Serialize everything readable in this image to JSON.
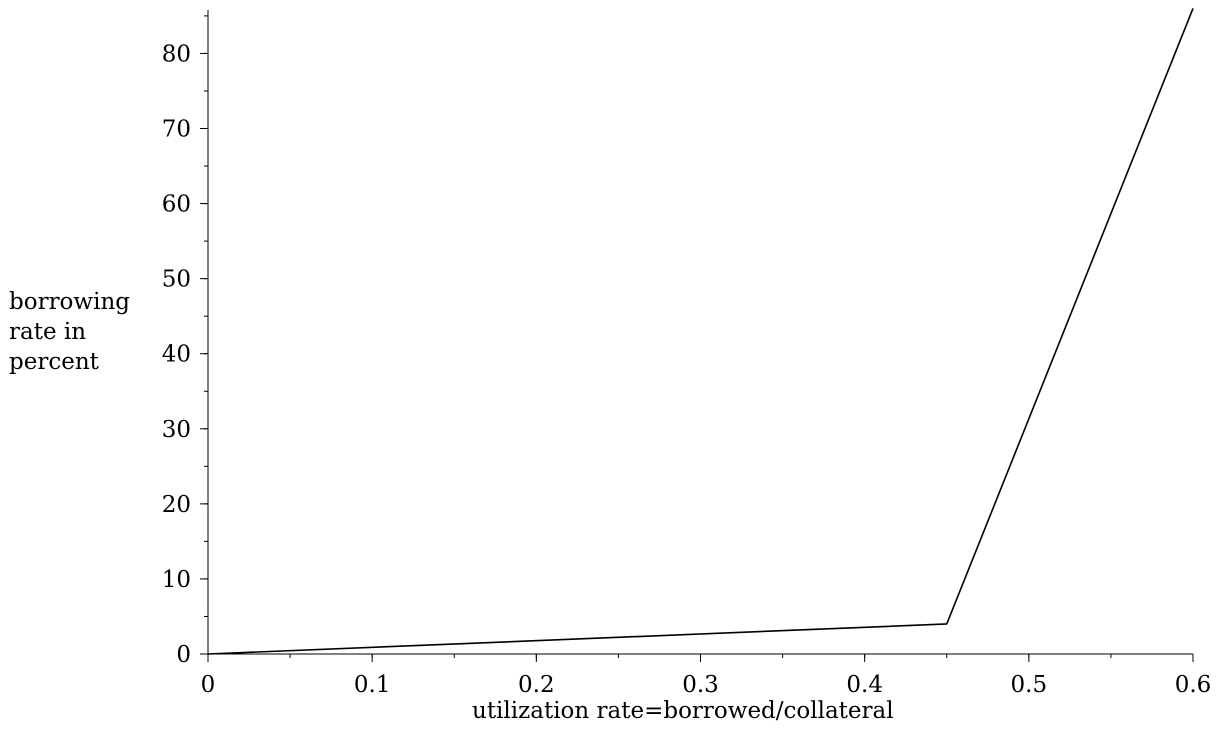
{
  "chart_data": {
    "type": "line",
    "title": "",
    "xlabel": "utilization rate=borrowed/collateral",
    "ylabel_lines": [
      "borrowing",
      "rate in",
      "percent"
    ],
    "xlim": [
      0,
      0.6
    ],
    "ylim": [
      0,
      86
    ],
    "x_ticks": [
      0,
      0.1,
      0.2,
      0.3,
      0.4,
      0.5,
      0.6
    ],
    "x_tick_labels": [
      "0",
      "0.1",
      "0.2",
      "0.3",
      "0.4",
      "0.5",
      "0.6"
    ],
    "y_ticks": [
      0,
      10,
      20,
      30,
      40,
      50,
      60,
      70,
      80
    ],
    "y_tick_labels": [
      "0",
      "10",
      "20",
      "30",
      "40",
      "50",
      "60",
      "70",
      "80"
    ],
    "x_minor_step": 0.05,
    "y_minor_step": 5,
    "grid": false,
    "line_color": "#000000",
    "series": [
      {
        "x": [
          0,
          0.45,
          0.6
        ],
        "y": [
          0,
          4,
          86
        ]
      }
    ]
  }
}
